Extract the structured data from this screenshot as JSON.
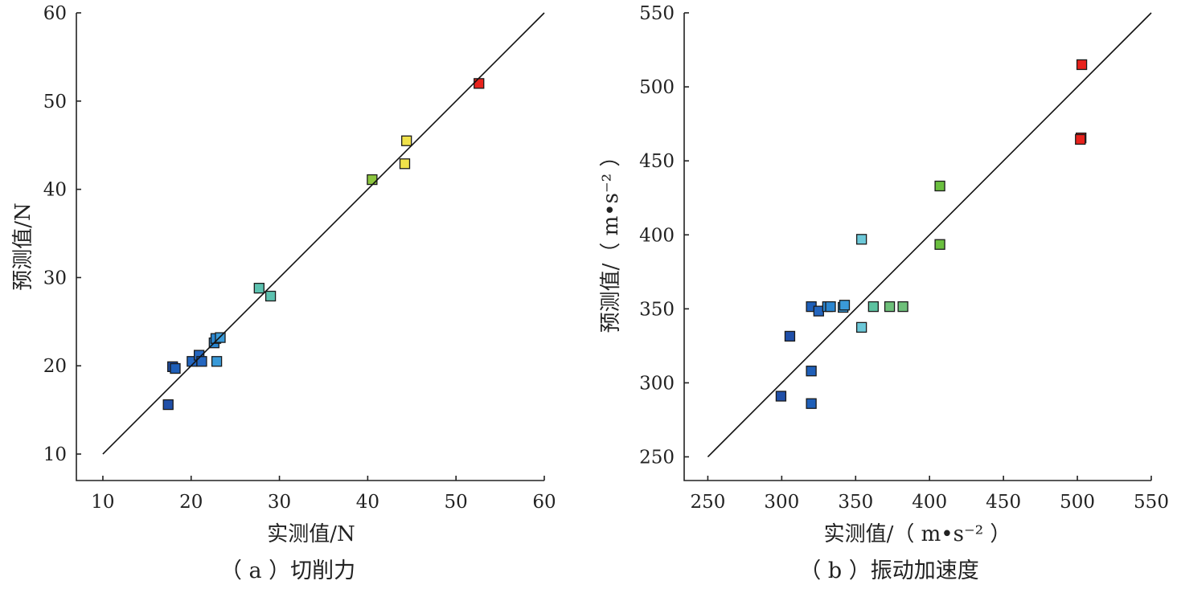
{
  "chart_data": [
    {
      "type": "scatter",
      "caption": "（ a ）切削力",
      "xlabel": "实测值/N",
      "ylabel": "预测值/N",
      "xlim": [
        7,
        60
      ],
      "ylim": [
        7,
        60
      ],
      "xticks": [
        10,
        20,
        30,
        40,
        50,
        60
      ],
      "yticks": [
        10,
        20,
        30,
        40,
        50,
        60
      ],
      "xtick_labels": [
        "10",
        "20",
        "30",
        "40",
        "50",
        "60"
      ],
      "ytick_labels": [
        "10",
        "20",
        "30",
        "40",
        "50",
        "60"
      ],
      "reference_line": [
        [
          10,
          10
        ],
        [
          60,
          60
        ]
      ],
      "grid": false,
      "points": [
        {
          "x": 17.4,
          "y": 15.6,
          "color": "#1f4fa8"
        },
        {
          "x": 17.9,
          "y": 19.9,
          "color": "#1f4fa8"
        },
        {
          "x": 18.2,
          "y": 19.7,
          "color": "#1f5fb8"
        },
        {
          "x": 20.1,
          "y": 20.5,
          "color": "#2466bf"
        },
        {
          "x": 20.9,
          "y": 21.2,
          "color": "#2466bf"
        },
        {
          "x": 21.2,
          "y": 20.5,
          "color": "#2466bf"
        },
        {
          "x": 22.6,
          "y": 22.6,
          "color": "#2b86d0"
        },
        {
          "x": 22.8,
          "y": 23.1,
          "color": "#2b86d0"
        },
        {
          "x": 23.3,
          "y": 23.2,
          "color": "#3a9ad8"
        },
        {
          "x": 22.9,
          "y": 20.5,
          "color": "#3a9ad8"
        },
        {
          "x": 27.7,
          "y": 28.8,
          "color": "#5cc2b0"
        },
        {
          "x": 29.0,
          "y": 27.9,
          "color": "#5cc2b0"
        },
        {
          "x": 40.5,
          "y": 41.1,
          "color": "#8cc63f"
        },
        {
          "x": 44.2,
          "y": 42.9,
          "color": "#f0e24a"
        },
        {
          "x": 44.4,
          "y": 45.5,
          "color": "#f0e24a"
        },
        {
          "x": 52.6,
          "y": 52.0,
          "color": "#e8221c"
        }
      ]
    },
    {
      "type": "scatter",
      "caption": "（ b ）振动加速度",
      "xlabel": "实测值/（ m•s⁻² ）",
      "ylabel": "预测值/（ m•s⁻² ）",
      "xlim": [
        234,
        550
      ],
      "ylim": [
        234,
        550
      ],
      "xticks": [
        250,
        300,
        350,
        400,
        450,
        500,
        550
      ],
      "yticks": [
        250,
        300,
        350,
        400,
        450,
        500,
        550
      ],
      "xtick_labels": [
        "250",
        "300",
        "350",
        "400",
        "450",
        "500",
        "550"
      ],
      "ytick_labels": [
        "250",
        "300",
        "350",
        "400",
        "450",
        "500",
        "550"
      ],
      "reference_line": [
        [
          250,
          250
        ],
        [
          550,
          550
        ]
      ],
      "grid": false,
      "points": [
        {
          "x": 299.5,
          "y": 291,
          "color": "#1f4fa8"
        },
        {
          "x": 305.5,
          "y": 331.5,
          "color": "#1f4fa8"
        },
        {
          "x": 320,
          "y": 308,
          "color": "#1f5fb8"
        },
        {
          "x": 320,
          "y": 286,
          "color": "#1f5fb8"
        },
        {
          "x": 320,
          "y": 351.5,
          "color": "#1f5fb8"
        },
        {
          "x": 325,
          "y": 348.5,
          "color": "#2466bf"
        },
        {
          "x": 331,
          "y": 351.5,
          "color": "#2b86d0"
        },
        {
          "x": 333,
          "y": 351.5,
          "color": "#2b86d0"
        },
        {
          "x": 341.5,
          "y": 351,
          "color": "#3a9ad8"
        },
        {
          "x": 342.5,
          "y": 352.5,
          "color": "#3a9ad8"
        },
        {
          "x": 354,
          "y": 397,
          "color": "#6cc8d8"
        },
        {
          "x": 354,
          "y": 337.5,
          "color": "#6cc8d8"
        },
        {
          "x": 362,
          "y": 351.5,
          "color": "#5cc2a0"
        },
        {
          "x": 373,
          "y": 351.5,
          "color": "#6ec07a"
        },
        {
          "x": 382,
          "y": 351.5,
          "color": "#6ec07a"
        },
        {
          "x": 407,
          "y": 433,
          "color": "#6abf3f"
        },
        {
          "x": 407,
          "y": 393.5,
          "color": "#6abf3f"
        },
        {
          "x": 502.5,
          "y": 465.5,
          "color": "#e8221c"
        },
        {
          "x": 502,
          "y": 464.5,
          "color": "#e8221c"
        },
        {
          "x": 503,
          "y": 515,
          "color": "#e8221c"
        }
      ]
    }
  ]
}
